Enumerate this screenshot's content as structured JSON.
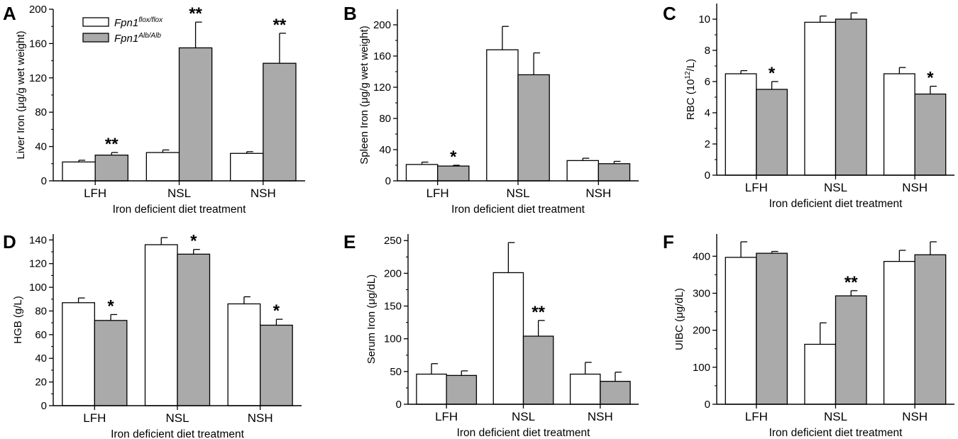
{
  "legend": {
    "series": [
      {
        "base": "Fpn1",
        "sup": "flox/flox"
      },
      {
        "base": "Fpn1",
        "sup": "Alb/Alb"
      }
    ]
  },
  "colors": {
    "control": "#ffffff",
    "mutant": "#aaaaaa",
    "stroke": "#000000"
  },
  "chart_data": [
    {
      "id": "A",
      "type": "bar",
      "categories": [
        "LFH",
        "NSL",
        "NSH"
      ],
      "xlabel": "Iron deficient diet treatment",
      "ylabel": "Liver Iron (μg/g wet weight)",
      "ylim": [
        0,
        200
      ],
      "yticks": [
        0,
        40,
        80,
        120,
        160,
        200
      ],
      "series": [
        {
          "name": "Fpn1 flox/flox",
          "values": [
            22,
            33,
            32
          ],
          "errors": [
            2,
            3,
            2
          ]
        },
        {
          "name": "Fpn1 Alb/Alb",
          "values": [
            30,
            155,
            137
          ],
          "errors": [
            3,
            30,
            35
          ]
        }
      ],
      "annotations": [
        "**",
        "**",
        "**"
      ]
    },
    {
      "id": "B",
      "type": "bar",
      "categories": [
        "LFH",
        "NSL",
        "NSH"
      ],
      "xlabel": "Iron deficient diet treatment",
      "ylabel": "Spleen Iron (μg/g wet weight)",
      "ylim": [
        0,
        220
      ],
      "yticks": [
        0,
        40,
        80,
        120,
        160,
        200
      ],
      "series": [
        {
          "name": "Fpn1 flox/flox",
          "values": [
            21,
            168,
            26
          ],
          "errors": [
            3,
            30,
            3
          ]
        },
        {
          "name": "Fpn1 Alb/Alb",
          "values": [
            19,
            136,
            22
          ],
          "errors": [
            1,
            28,
            3
          ]
        }
      ],
      "annotations": [
        "*",
        "",
        ""
      ]
    },
    {
      "id": "C",
      "type": "bar",
      "categories": [
        "LFH",
        "NSL",
        "NSH"
      ],
      "xlabel": "Iron deficient diet treatment",
      "ylabel": "RBC (10^12/L)",
      "ylim": [
        0,
        11
      ],
      "yticks": [
        0,
        2,
        4,
        6,
        8,
        10
      ],
      "series": [
        {
          "name": "Fpn1 flox/flox",
          "values": [
            6.5,
            9.8,
            6.5
          ],
          "errors": [
            0.2,
            0.4,
            0.4
          ]
        },
        {
          "name": "Fpn1 Alb/Alb",
          "values": [
            5.5,
            10.0,
            5.2
          ],
          "errors": [
            0.5,
            0.4,
            0.5
          ]
        }
      ],
      "annotations": [
        "*",
        "",
        "*"
      ]
    },
    {
      "id": "D",
      "type": "bar",
      "categories": [
        "LFH",
        "NSL",
        "NSH"
      ],
      "xlabel": "Iron deficient diet treatment",
      "ylabel": "HGB (g/L)",
      "ylim": [
        0,
        145
      ],
      "yticks": [
        0,
        20,
        40,
        60,
        80,
        100,
        120,
        140
      ],
      "series": [
        {
          "name": "Fpn1 flox/flox",
          "values": [
            87,
            136,
            86
          ],
          "errors": [
            4,
            6,
            6
          ]
        },
        {
          "name": "Fpn1 Alb/Alb",
          "values": [
            72,
            128,
            68
          ],
          "errors": [
            5,
            4,
            5
          ]
        }
      ],
      "annotations": [
        "*",
        "*",
        "*"
      ]
    },
    {
      "id": "E",
      "type": "bar",
      "categories": [
        "LFH",
        "NSL",
        "NSH"
      ],
      "xlabel": "Iron deficient diet treatment",
      "ylabel": "Serum Iron (μg/dL)",
      "ylim": [
        0,
        260
      ],
      "yticks": [
        0,
        50,
        100,
        150,
        200,
        250
      ],
      "series": [
        {
          "name": "Fpn1 flox/flox",
          "values": [
            46,
            201,
            46
          ],
          "errors": [
            16,
            46,
            18
          ]
        },
        {
          "name": "Fpn1 Alb/Alb",
          "values": [
            44,
            104,
            35
          ],
          "errors": [
            7,
            24,
            14
          ]
        }
      ],
      "annotations": [
        "",
        "**",
        ""
      ]
    },
    {
      "id": "F",
      "type": "bar",
      "categories": [
        "LFH",
        "NSL",
        "NSH"
      ],
      "xlabel": "Iron deficient diet treatment",
      "ylabel": "UIBC (μg/dL)",
      "ylim": [
        0,
        460
      ],
      "yticks": [
        0,
        100,
        200,
        300,
        400
      ],
      "series": [
        {
          "name": "Fpn1 flox/flox",
          "values": [
            397,
            162,
            386
          ],
          "errors": [
            42,
            58,
            30
          ]
        },
        {
          "name": "Fpn1 Alb/Alb",
          "values": [
            408,
            293,
            404
          ],
          "errors": [
            5,
            14,
            35
          ]
        }
      ],
      "annotations": [
        "",
        "**",
        ""
      ]
    }
  ]
}
